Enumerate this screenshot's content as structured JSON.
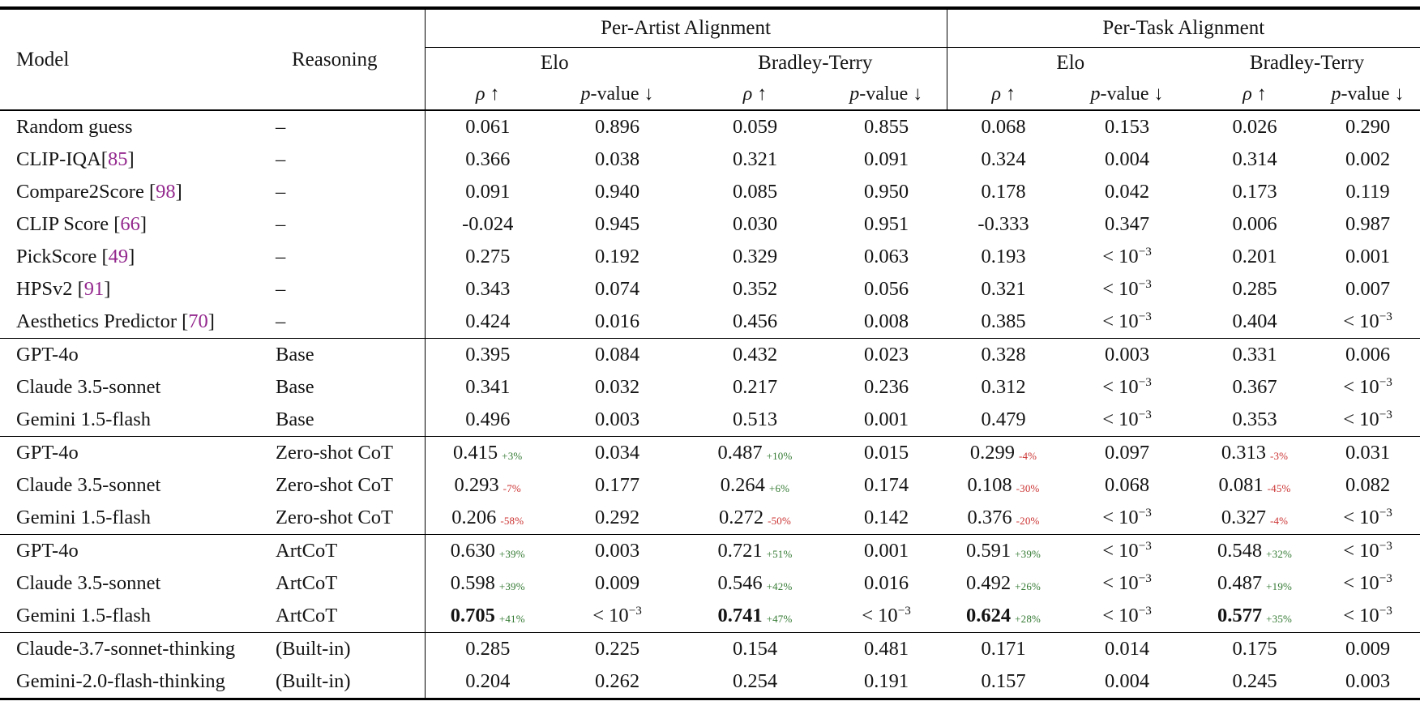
{
  "colors": {
    "citation": "#94288e",
    "positive": "#347a33",
    "negative": "#cc3333",
    "text": "#141414"
  },
  "table": {
    "headers": {
      "model": "Model",
      "reasoning": "Reasoning",
      "per_artist": "Per-Artist Alignment",
      "per_task": "Per-Task Alignment",
      "elo": "Elo",
      "bradley_terry": "Bradley-Terry",
      "rho_sym": "ρ",
      "up_arrow": "↑",
      "p_sym": "p",
      "p_rest": "-value",
      "down_arrow": "↓"
    },
    "groups": [
      {
        "rows": [
          {
            "model": {
              "pre": "Random guess"
            },
            "reasoning": "–",
            "cells": [
              "0.061",
              "0.896",
              "0.059",
              "0.855",
              "0.068",
              "0.153",
              "0.026",
              "0.290"
            ]
          },
          {
            "model": {
              "pre": "CLIP-IQA",
              "cite": "85"
            },
            "reasoning": "–",
            "cells": [
              "0.366",
              "0.038",
              "0.321",
              "0.091",
              "0.324",
              "0.004",
              "0.314",
              "0.002"
            ]
          },
          {
            "model": {
              "pre": "Compare2Score ",
              "cite": "98"
            },
            "reasoning": "–",
            "cells": [
              "0.091",
              "0.940",
              "0.085",
              "0.950",
              "0.178",
              "0.042",
              "0.173",
              "0.119"
            ]
          },
          {
            "model": {
              "pre": "CLIP Score ",
              "cite": "66"
            },
            "reasoning": "–",
            "cells": [
              "-0.024",
              "0.945",
              "0.030",
              "0.951",
              "-0.333",
              "0.347",
              "0.006",
              "0.987"
            ]
          },
          {
            "model": {
              "pre": "PickScore ",
              "cite": "49"
            },
            "reasoning": "–",
            "cells": [
              "0.275",
              "0.192",
              "0.329",
              "0.063",
              "0.193",
              "< 10^-3",
              "0.201",
              "0.001"
            ]
          },
          {
            "model": {
              "pre": "HPSv2 ",
              "cite": "91"
            },
            "reasoning": "–",
            "cells": [
              "0.343",
              "0.074",
              "0.352",
              "0.056",
              "0.321",
              "< 10^-3",
              "0.285",
              "0.007"
            ]
          },
          {
            "model": {
              "pre": "Aesthetics Predictor ",
              "cite": "70"
            },
            "reasoning": "–",
            "cells": [
              "0.424",
              "0.016",
              "0.456",
              "0.008",
              "0.385",
              "< 10^-3",
              "0.404",
              "< 10^-3"
            ]
          }
        ]
      },
      {
        "rows": [
          {
            "model": {
              "pre": "GPT-4o"
            },
            "reasoning": "Base",
            "cells": [
              "0.395",
              "0.084",
              "0.432",
              "0.023",
              "0.328",
              "0.003",
              "0.331",
              "0.006"
            ]
          },
          {
            "model": {
              "pre": "Claude 3.5-sonnet"
            },
            "reasoning": "Base",
            "cells": [
              "0.341",
              "0.032",
              "0.217",
              "0.236",
              "0.312",
              "< 10^-3",
              "0.367",
              "< 10^-3"
            ]
          },
          {
            "model": {
              "pre": "Gemini 1.5-flash"
            },
            "reasoning": "Base",
            "cells": [
              "0.496",
              "0.003",
              "0.513",
              "0.001",
              "0.479",
              "< 10^-3",
              "0.353",
              "< 10^-3"
            ]
          }
        ]
      },
      {
        "rows": [
          {
            "model": {
              "pre": "GPT-4o"
            },
            "reasoning": "Zero-shot CoT",
            "cells": [
              {
                "v": "0.415",
                "d": "+3%"
              },
              "0.034",
              {
                "v": "0.487",
                "d": "+10%"
              },
              "0.015",
              {
                "v": "0.299",
                "d": "-4%"
              },
              "0.097",
              {
                "v": "0.313",
                "d": "-3%"
              },
              "0.031"
            ]
          },
          {
            "model": {
              "pre": "Claude 3.5-sonnet"
            },
            "reasoning": "Zero-shot CoT",
            "cells": [
              {
                "v": "0.293",
                "d": "-7%"
              },
              "0.177",
              {
                "v": "0.264",
                "d": "+6%"
              },
              "0.174",
              {
                "v": "0.108",
                "d": "-30%"
              },
              "0.068",
              {
                "v": "0.081",
                "d": "-45%"
              },
              "0.082"
            ]
          },
          {
            "model": {
              "pre": "Gemini 1.5-flash"
            },
            "reasoning": "Zero-shot CoT",
            "cells": [
              {
                "v": "0.206",
                "d": "-58%"
              },
              "0.292",
              {
                "v": "0.272",
                "d": "-50%"
              },
              "0.142",
              {
                "v": "0.376",
                "d": "-20%"
              },
              "< 10^-3",
              {
                "v": "0.327",
                "d": "-4%"
              },
              "< 10^-3"
            ]
          }
        ]
      },
      {
        "rows": [
          {
            "model": {
              "pre": "GPT-4o"
            },
            "reasoning": "ArtCoT",
            "cells": [
              {
                "v": "0.630",
                "d": "+39%"
              },
              "0.003",
              {
                "v": "0.721",
                "d": "+51%"
              },
              "0.001",
              {
                "v": "0.591",
                "d": "+39%"
              },
              "< 10^-3",
              {
                "v": "0.548",
                "d": "+32%"
              },
              "< 10^-3"
            ]
          },
          {
            "model": {
              "pre": "Claude 3.5-sonnet"
            },
            "reasoning": "ArtCoT",
            "cells": [
              {
                "v": "0.598",
                "d": "+39%"
              },
              "0.009",
              {
                "v": "0.546",
                "d": "+42%"
              },
              "0.016",
              {
                "v": "0.492",
                "d": "+26%"
              },
              "< 10^-3",
              {
                "v": "0.487",
                "d": "+19%"
              },
              "< 10^-3"
            ]
          },
          {
            "model": {
              "pre": "Gemini 1.5-flash"
            },
            "reasoning": "ArtCoT",
            "cells": [
              {
                "v": "0.705",
                "d": "+41%",
                "b": true
              },
              "< 10^-3",
              {
                "v": "0.741",
                "d": "+47%",
                "b": true
              },
              "< 10^-3",
              {
                "v": "0.624",
                "d": "+28%",
                "b": true
              },
              "< 10^-3",
              {
                "v": "0.577",
                "d": "+35%",
                "b": true
              },
              "< 10^-3"
            ]
          }
        ]
      },
      {
        "rows": [
          {
            "model": {
              "pre": "Claude-3.7-sonnet-thinking"
            },
            "reasoning": "(Built-in)",
            "cells": [
              "0.285",
              "0.225",
              "0.154",
              "0.481",
              "0.171",
              "0.014",
              "0.175",
              "0.009"
            ]
          },
          {
            "model": {
              "pre": "Gemini-2.0-flash-thinking"
            },
            "reasoning": "(Built-in)",
            "cells": [
              "0.204",
              "0.262",
              "0.254",
              "0.191",
              "0.157",
              "0.004",
              "0.245",
              "0.003"
            ]
          }
        ]
      }
    ]
  }
}
